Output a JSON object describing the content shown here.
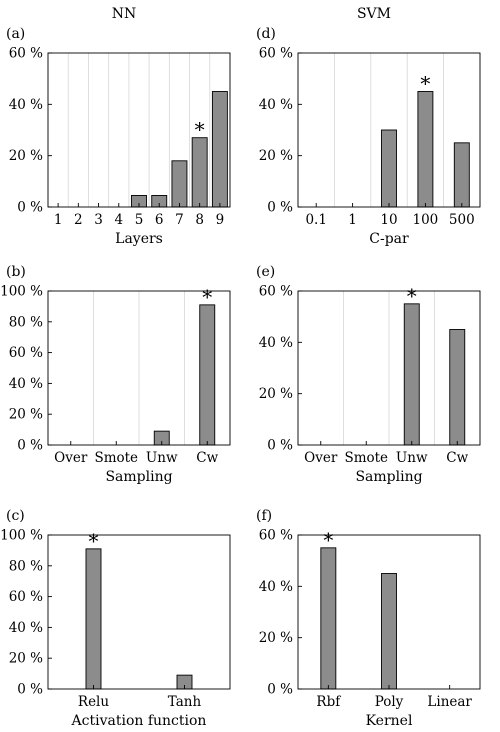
{
  "columns": [
    "NN",
    "SVM"
  ],
  "chart_data": [
    {
      "type": "bar",
      "panel": "(a)",
      "categories": [
        "1",
        "2",
        "3",
        "4",
        "5",
        "6",
        "7",
        "8",
        "9"
      ],
      "values": [
        0,
        0,
        0,
        0,
        4.5,
        4.5,
        18,
        27,
        45
      ],
      "xlabel": "Layers",
      "ylim": [
        0,
        60
      ],
      "yticks": [
        "0 %",
        "20 %",
        "40 %",
        "60 %"
      ],
      "best": "8",
      "grid": true
    },
    {
      "type": "bar",
      "panel": "(d)",
      "categories": [
        "0.1",
        "1",
        "10",
        "100",
        "500"
      ],
      "values": [
        0,
        0,
        30,
        45,
        25
      ],
      "xlabel": "C-par",
      "ylim": [
        0,
        60
      ],
      "yticks": [
        "0 %",
        "20 %",
        "40 %",
        "60 %"
      ],
      "best": "100",
      "grid": true
    },
    {
      "type": "bar",
      "panel": "(b)",
      "categories": [
        "Over",
        "Smote",
        "Unw",
        "Cw"
      ],
      "values": [
        0,
        0,
        9,
        91
      ],
      "xlabel": "Sampling",
      "ylim": [
        0,
        100
      ],
      "yticks": [
        "0 %",
        "20 %",
        "40 %",
        "60 %",
        "80 %",
        "100 %"
      ],
      "best": "Cw",
      "grid": true
    },
    {
      "type": "bar",
      "panel": "(e)",
      "categories": [
        "Over",
        "Smote",
        "Unw",
        "Cw"
      ],
      "values": [
        0,
        0,
        55,
        45
      ],
      "xlabel": "Sampling",
      "ylim": [
        0,
        60
      ],
      "yticks": [
        "0 %",
        "20 %",
        "40 %",
        "60 %"
      ],
      "best": "Unw",
      "grid": true
    },
    {
      "type": "bar",
      "panel": "(c)",
      "categories": [
        "Relu",
        "Tanh"
      ],
      "values": [
        91,
        9
      ],
      "xlabel": "Activation function",
      "ylim": [
        0,
        100
      ],
      "yticks": [
        "0 %",
        "20 %",
        "40 %",
        "60 %",
        "80 %",
        "100 %"
      ],
      "best": "Relu",
      "grid": false
    },
    {
      "type": "bar",
      "panel": "(f)",
      "categories": [
        "Rbf",
        "Poly",
        "Linear"
      ],
      "values": [
        55,
        45,
        0
      ],
      "xlabel": "Kernel",
      "ylim": [
        0,
        60
      ],
      "yticks": [
        "0 %",
        "20 %",
        "40 %",
        "60 %"
      ],
      "best": "Rbf",
      "grid": false
    }
  ],
  "best_marker": "*",
  "colors": {
    "bar": "#8c8c8c",
    "grid": "#d6d6d6"
  }
}
